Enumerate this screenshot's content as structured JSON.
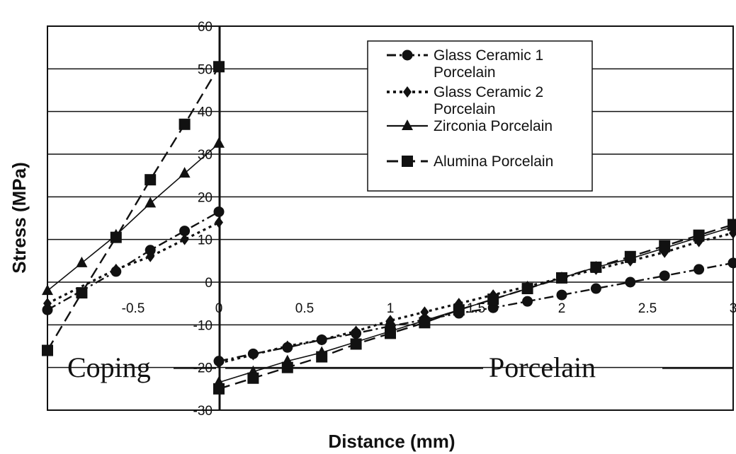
{
  "chart_data": {
    "type": "line",
    "title": "",
    "xlabel": "Distance (mm)",
    "ylabel": "Stress (MPa)",
    "xlim": [
      -1,
      3
    ],
    "ylim": [
      -30,
      60
    ],
    "x_ticks": [
      "-0.5",
      "0",
      "0.5",
      "1",
      "1.5",
      "2",
      "2.5",
      "3"
    ],
    "y_ticks": [
      "60",
      "50",
      "40",
      "30",
      "20",
      "10",
      "0",
      "-10",
      "-20",
      "-30"
    ],
    "grid": "horizontal",
    "legend_position": "top-right",
    "annotations": [
      "Coping",
      "Porcelain"
    ],
    "series": [
      {
        "name": "Glass Ceramic 1 Porcelain",
        "marker": "circle",
        "dash": "dash-dot",
        "segments": [
          {
            "x": [
              -1,
              -0.6,
              -0.4,
              -0.2,
              0
            ],
            "y": [
              -6.5,
              2.5,
              7.5,
              12,
              16.5
            ]
          },
          {
            "x": [
              0,
              0.2,
              0.4,
              0.6,
              0.8,
              1.0,
              1.2,
              1.4,
              1.6,
              1.8,
              2.0,
              2.2,
              2.4,
              2.6,
              2.8,
              3.0
            ],
            "y": [
              -18.5,
              -16.8,
              -15.3,
              -13.5,
              -12,
              -10.3,
              -8.8,
              -7.3,
              -6,
              -4.5,
              -3,
              -1.5,
              0,
              1.5,
              3,
              4.5
            ]
          }
        ]
      },
      {
        "name": "Glass Ceramic 2 Porcelain",
        "marker": "diamond",
        "dash": "dotted",
        "segments": [
          {
            "x": [
              -1,
              -0.6,
              -0.4,
              -0.2,
              0
            ],
            "y": [
              -5,
              3,
              6,
              10,
              14
            ]
          },
          {
            "x": [
              0,
              0.2,
              0.4,
              0.6,
              0.8,
              1.0,
              1.2,
              1.4,
              1.6,
              1.8,
              2.0,
              2.2,
              2.4,
              2.6,
              2.8,
              3.0
            ],
            "y": [
              -19,
              -17,
              -15,
              -13.5,
              -11.5,
              -9,
              -7,
              -5,
              -3,
              -1,
              1,
              3,
              5,
              7,
              9.5,
              11.5
            ]
          }
        ]
      },
      {
        "name": "Zirconia Porcelain",
        "marker": "triangle",
        "dash": "solid",
        "segments": [
          {
            "x": [
              -1,
              -0.8,
              -0.6,
              -0.4,
              -0.2,
              0
            ],
            "y": [
              -2,
              4.5,
              11,
              18.5,
              25.5,
              32.5
            ]
          },
          {
            "x": [
              0,
              0.2,
              0.4,
              0.6,
              0.8,
              1.0,
              1.2,
              1.4,
              1.6,
              1.8,
              2.0,
              2.2,
              2.4,
              2.6,
              2.8,
              3.0
            ],
            "y": [
              -23.5,
              -21,
              -18.5,
              -16.5,
              -14,
              -11.5,
              -9,
              -6.5,
              -4,
              -1.5,
              1,
              3.5,
              5.5,
              8,
              10.5,
              13
            ]
          }
        ]
      },
      {
        "name": "Alumina Porcelain",
        "marker": "square",
        "dash": "dashed",
        "segments": [
          {
            "x": [
              -1,
              -0.8,
              -0.6,
              -0.4,
              -0.2,
              0
            ],
            "y": [
              -16,
              -2.5,
              10.5,
              24,
              37,
              50.5
            ]
          },
          {
            "x": [
              0,
              0.2,
              0.4,
              0.6,
              0.8,
              1.0,
              1.2,
              1.4,
              1.6,
              1.8,
              2.0,
              2.2,
              2.4,
              2.6,
              2.8,
              3.0
            ],
            "y": [
              -25,
              -22.5,
              -20,
              -17.5,
              -14.5,
              -12,
              -9.5,
              -6.5,
              -4,
              -1.5,
              1,
              3.5,
              6,
              8.5,
              11,
              13.5
            ]
          }
        ]
      }
    ]
  }
}
